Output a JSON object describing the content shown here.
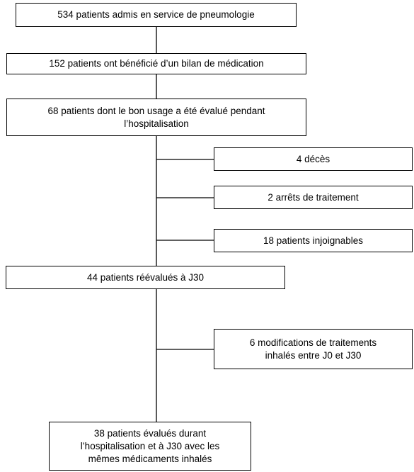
{
  "flowchart": {
    "admitted": "534 patients admis en service de pneumologie",
    "medication_review": "152 patients ont bénéficié d’un bilan de médication",
    "evaluated": [
      "68 patients dont le bon usage a été évalué pendant",
      "l’hospitalisation"
    ],
    "deaths": "4 décès",
    "stopped": "2 arrêts de traitement",
    "unreachable": "18 patients injoignables",
    "reevaluated": "44 patients réévalués à J30",
    "modifications": [
      "6 modifications de traitements",
      "inhalés entre J0 et J30"
    ],
    "final": [
      "38 patients évalués durant",
      "l’hospitalisation et à J30 avec les",
      "mêmes médicaments inhalés"
    ]
  }
}
